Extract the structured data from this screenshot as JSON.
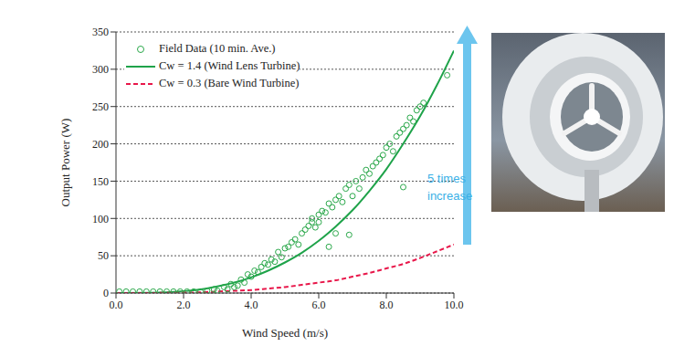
{
  "chart_data": {
    "type": "scatter",
    "x_label": "Wind Speed (m/s)",
    "y_label": "Output Power (W)",
    "xlim": [
      0,
      10
    ],
    "xticks": [
      {
        "value": 0,
        "label": "0.0"
      },
      {
        "value": 2,
        "label": "2.0"
      },
      {
        "value": 4,
        "label": "4.0"
      },
      {
        "value": 6,
        "label": "6.0"
      },
      {
        "value": 8,
        "label": "8.0"
      },
      {
        "value": 10,
        "label": "10.0"
      }
    ],
    "ylim": [
      0,
      350
    ],
    "yticks": [
      0,
      50,
      100,
      150,
      200,
      250,
      300,
      350
    ],
    "grid": true,
    "legend": "upper left",
    "annotations": [
      {
        "text": "5 times increase",
        "color": "#3ab0e6"
      }
    ],
    "series": [
      {
        "name": "Field Data (10 min. Ave.)",
        "type": "scatter",
        "marker": "circle",
        "color": "#2aa84a",
        "x": [
          0.1,
          0.3,
          0.5,
          0.7,
          0.9,
          1.1,
          1.3,
          1.5,
          1.7,
          1.9,
          2.1,
          2.3,
          2.5,
          2.7,
          2.9,
          3.0,
          3.2,
          3.3,
          3.4,
          3.5,
          3.6,
          3.7,
          3.8,
          3.9,
          4.0,
          4.1,
          4.2,
          4.3,
          4.4,
          4.5,
          4.6,
          4.7,
          4.8,
          4.9,
          5.0,
          5.1,
          5.2,
          5.3,
          5.4,
          5.5,
          5.6,
          5.7,
          5.8,
          5.8,
          5.9,
          6.0,
          6.0,
          6.1,
          6.2,
          6.3,
          6.3,
          6.4,
          6.5,
          6.5,
          6.6,
          6.7,
          6.8,
          6.9,
          6.9,
          7.0,
          7.1,
          7.2,
          7.3,
          7.4,
          7.5,
          7.6,
          7.7,
          7.8,
          7.9,
          8.0,
          8.1,
          8.2,
          8.3,
          8.4,
          8.5,
          8.5,
          8.6,
          8.7,
          8.8,
          8.9,
          9.0,
          9.1,
          9.8
        ],
        "values": [
          2,
          2,
          2,
          2,
          2,
          2,
          2,
          2,
          2,
          2,
          2,
          2,
          2,
          3,
          5,
          3,
          8,
          5,
          12,
          8,
          10,
          18,
          14,
          25,
          22,
          30,
          28,
          35,
          40,
          38,
          45,
          42,
          55,
          48,
          60,
          62,
          68,
          72,
          65,
          80,
          85,
          90,
          95,
          100,
          88,
          105,
          95,
          110,
          108,
          120,
          62,
          115,
          80,
          125,
          130,
          122,
          140,
          145,
          78,
          130,
          150,
          140,
          155,
          165,
          160,
          170,
          175,
          180,
          185,
          195,
          200,
          190,
          210,
          215,
          142,
          220,
          225,
          235,
          230,
          245,
          250,
          255,
          292
        ]
      },
      {
        "name": "Cw = 1.4 (Wind Lens Turbine)",
        "type": "line",
        "line_style": "solid",
        "color": "#1fa34a",
        "x": [
          0,
          1,
          2,
          2.5,
          3,
          3.5,
          4,
          4.5,
          5,
          5.5,
          6,
          6.5,
          7,
          7.5,
          8,
          8.5,
          9,
          9.5,
          10
        ],
        "values": [
          0,
          0.3,
          2.6,
          5,
          9,
          14,
          21,
          30,
          41,
          54,
          70,
          89,
          111,
          137,
          166,
          200,
          237,
          279,
          325
        ]
      },
      {
        "name": "Cw = 0.3 (Bare Wind Turbine)",
        "type": "line",
        "line_style": "dashed",
        "color": "#e8174a",
        "x": [
          0,
          1,
          2,
          2.5,
          3,
          3.5,
          4,
          4.5,
          5,
          5.5,
          6,
          6.5,
          7,
          7.5,
          8,
          8.5,
          9,
          9.5,
          10
        ],
        "values": [
          0,
          0.1,
          0.5,
          1,
          2,
          3,
          4,
          6,
          8,
          11,
          14,
          17,
          22,
          27,
          33,
          39,
          47,
          56,
          65
        ]
      }
    ]
  }
}
